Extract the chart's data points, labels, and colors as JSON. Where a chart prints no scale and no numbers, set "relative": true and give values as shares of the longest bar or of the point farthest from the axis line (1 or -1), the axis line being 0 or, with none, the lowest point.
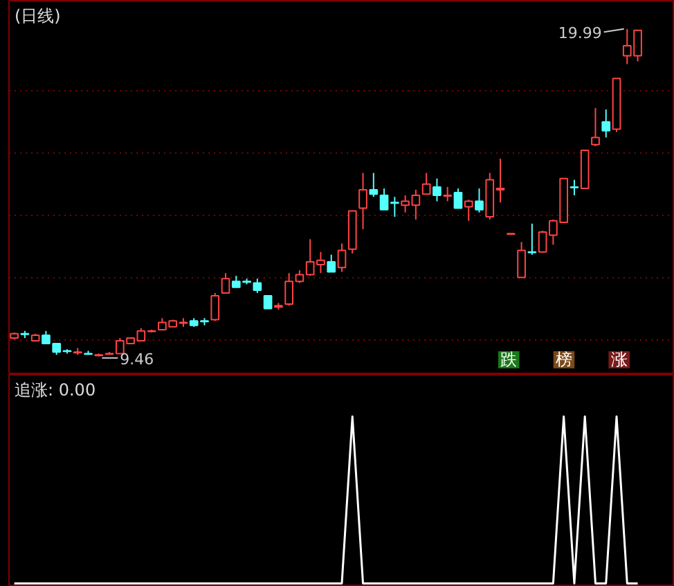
{
  "chart_data": [
    {
      "type": "candlestick",
      "title": "(日线)",
      "categories": [
        null,
        null,
        null,
        null,
        null,
        null,
        null,
        null,
        null,
        null,
        null,
        null,
        null,
        null,
        null,
        null,
        null,
        null,
        null,
        null,
        null,
        null,
        null,
        null,
        null,
        null,
        null,
        null,
        null,
        null,
        null,
        null,
        null,
        null,
        null,
        null,
        null,
        null,
        null,
        null,
        null,
        null,
        null,
        null,
        null,
        null,
        null,
        null,
        null,
        null,
        null,
        null,
        null,
        null,
        null,
        null,
        null,
        null,
        null,
        null
      ],
      "ohlc": [
        [
          10.05,
          10.23,
          10.0,
          10.19
        ],
        [
          10.19,
          10.28,
          10.05,
          10.17
        ],
        [
          9.96,
          10.19,
          9.96,
          10.14
        ],
        [
          10.14,
          10.28,
          9.87,
          9.87
        ],
        [
          9.87,
          9.87,
          9.51,
          9.6
        ],
        [
          9.64,
          9.69,
          9.55,
          9.62
        ],
        [
          9.58,
          9.73,
          9.51,
          9.6
        ],
        [
          9.55,
          9.64,
          9.51,
          9.53
        ],
        [
          9.49,
          9.55,
          9.46,
          9.51
        ],
        [
          9.53,
          9.6,
          9.51,
          9.55
        ],
        [
          9.55,
          10.05,
          9.55,
          9.96
        ],
        [
          9.87,
          10.05,
          9.87,
          10.05
        ],
        [
          9.96,
          10.37,
          9.96,
          10.28
        ],
        [
          10.26,
          10.32,
          10.23,
          10.28
        ],
        [
          10.32,
          10.69,
          10.32,
          10.55
        ],
        [
          10.41,
          10.64,
          10.41,
          10.6
        ],
        [
          10.53,
          10.69,
          10.41,
          10.55
        ],
        [
          10.6,
          10.69,
          10.41,
          10.46
        ],
        [
          10.6,
          10.69,
          10.46,
          10.58
        ],
        [
          10.64,
          11.5,
          10.6,
          11.41
        ],
        [
          11.5,
          12.14,
          11.5,
          11.96
        ],
        [
          11.87,
          12.05,
          11.68,
          11.68
        ],
        [
          11.87,
          11.96,
          11.78,
          11.85
        ],
        [
          11.82,
          11.96,
          11.5,
          11.59
        ],
        [
          11.41,
          11.41,
          11.0,
          11.0
        ],
        [
          11.05,
          11.18,
          10.96,
          11.09
        ],
        [
          11.14,
          12.14,
          11.09,
          11.87
        ],
        [
          11.87,
          12.23,
          11.82,
          12.09
        ],
        [
          12.09,
          13.23,
          12.05,
          12.5
        ],
        [
          12.41,
          12.82,
          12.14,
          12.55
        ],
        [
          12.5,
          12.73,
          12.18,
          12.18
        ],
        [
          12.32,
          13.09,
          12.18,
          12.87
        ],
        [
          12.91,
          14.14,
          12.77,
          14.14
        ],
        [
          14.23,
          15.36,
          13.55,
          14.82
        ],
        [
          14.82,
          15.36,
          14.59,
          14.68
        ],
        [
          14.64,
          14.86,
          14.18,
          14.18
        ],
        [
          14.41,
          14.59,
          13.95,
          14.39
        ],
        [
          14.32,
          14.64,
          14.09,
          14.45
        ],
        [
          14.32,
          14.82,
          13.86,
          14.64
        ],
        [
          14.68,
          15.36,
          14.68,
          15.0
        ],
        [
          14.91,
          15.18,
          14.45,
          14.64
        ],
        [
          14.62,
          14.91,
          14.45,
          14.64
        ],
        [
          14.73,
          14.86,
          14.23,
          14.23
        ],
        [
          14.27,
          14.5,
          13.82,
          14.45
        ],
        [
          14.45,
          14.86,
          14.09,
          14.18
        ],
        [
          13.95,
          15.36,
          13.86,
          15.14
        ],
        [
          14.82,
          15.82,
          14.41,
          14.86
        ],
        [
          13.41,
          13.41,
          13.41,
          13.41
        ],
        [
          12.0,
          13.14,
          12.0,
          12.87
        ],
        [
          12.82,
          13.73,
          12.73,
          12.8
        ],
        [
          12.82,
          13.5,
          12.82,
          13.46
        ],
        [
          13.36,
          13.86,
          13.05,
          13.82
        ],
        [
          13.77,
          15.18,
          13.77,
          15.18
        ],
        [
          14.91,
          15.14,
          14.64,
          14.89
        ],
        [
          14.86,
          16.09,
          14.86,
          16.09
        ],
        [
          16.27,
          17.45,
          16.22,
          16.5
        ],
        [
          17.0,
          17.4,
          16.5,
          16.72
        ],
        [
          16.77,
          18.4,
          16.68,
          18.4
        ],
        [
          19.13,
          19.99,
          18.86,
          19.45
        ],
        [
          19.13,
          19.95,
          18.95,
          19.95
        ]
      ],
      "ylim": [
        8.87,
        20.9
      ],
      "yticks": [
        {
          "value": 10,
          "label": null
        },
        {
          "value": 12,
          "label": null
        },
        {
          "value": 14,
          "label": null
        },
        {
          "value": 16,
          "label": null
        },
        {
          "value": 18,
          "label": null
        }
      ],
      "grid": "y",
      "annotations": [
        "19.99",
        "9.46",
        "跌",
        "榜",
        "涨"
      ]
    },
    {
      "type": "line",
      "title": "追涨: 0.00",
      "relative": true,
      "color": "#ffffff",
      "categories": [
        null,
        null,
        null,
        null,
        null,
        null,
        null,
        null,
        null,
        null,
        null,
        null,
        null,
        null,
        null,
        null,
        null,
        null,
        null,
        null,
        null,
        null,
        null,
        null,
        null,
        null,
        null,
        null,
        null,
        null,
        null,
        null,
        null,
        null,
        null,
        null,
        null,
        null,
        null,
        null,
        null,
        null,
        null,
        null,
        null,
        null,
        null,
        null,
        null,
        null,
        null,
        null,
        null,
        null,
        null,
        null,
        null,
        null,
        null,
        null
      ],
      "values": [
        0,
        0,
        0,
        0,
        0,
        0,
        0,
        0,
        0,
        0,
        0,
        0,
        0,
        0,
        0,
        0,
        0,
        0,
        0,
        0,
        0,
        0,
        0,
        0,
        0,
        0,
        0,
        0,
        0,
        0,
        0,
        0,
        1,
        0,
        0,
        0,
        0,
        0,
        0,
        0,
        0,
        0,
        0,
        0,
        0,
        0,
        0,
        0,
        0,
        0,
        0,
        0,
        1,
        0,
        1,
        0,
        0,
        1,
        0,
        0
      ]
    }
  ]
}
